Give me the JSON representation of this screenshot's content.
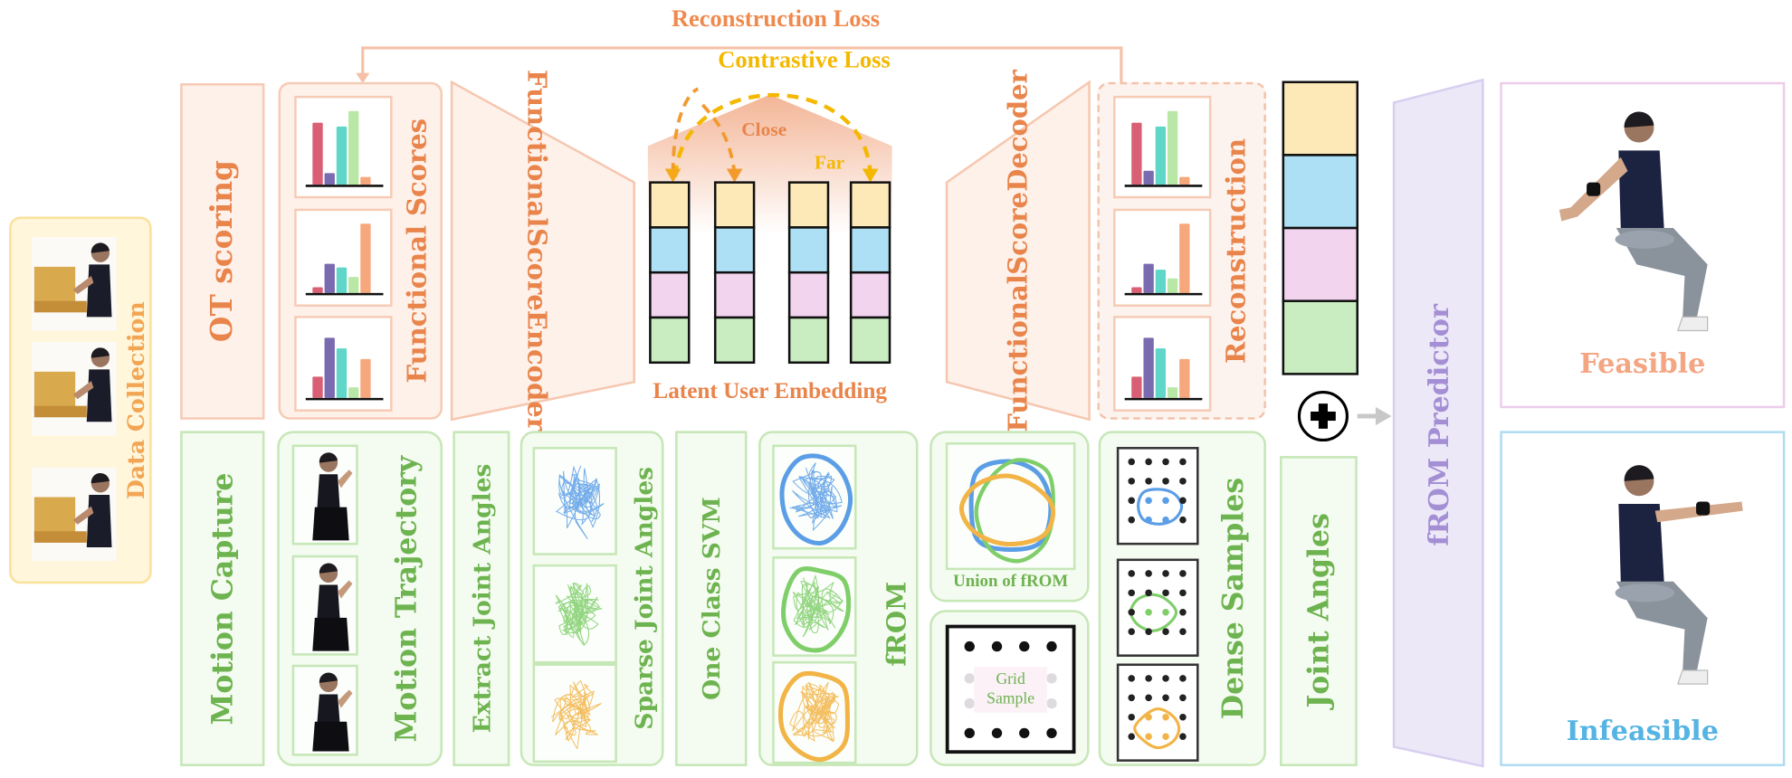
{
  "losses": {
    "reconstruction": "Reconstruction Loss",
    "contrastive": "Contrastive Loss",
    "close": "Close",
    "far": "Far"
  },
  "data_collection": {
    "label": "Data Collection"
  },
  "top_row": {
    "ot_scoring": "OT scoring",
    "functional_scores": "Functional Scores",
    "encoder": {
      "line1": "Functional",
      "line2": "Score",
      "line3": "Encoder"
    },
    "latent_embedding": "Latent User Embedding",
    "decoder": {
      "line1": "Functional",
      "line2": "Score",
      "line3": "Decoder"
    },
    "reconstruction": "Reconstruction"
  },
  "bottom_row": {
    "motion_capture": "Motion Capture",
    "motion_trajectory": "Motion Trajectory",
    "extract_joint_angles": "Extract Joint Angles",
    "sparse_joint_angles": "Sparse Joint Angles",
    "one_class_svm": "One Class SVM",
    "from": "fROM",
    "union_of_from": "Union of fROM",
    "grid_sample": {
      "line1": "Grid",
      "line2": "Sample"
    },
    "dense_samples": "Dense Samples",
    "joint_angles": "Joint Angles"
  },
  "predictor": {
    "label": "fROM Predictor"
  },
  "outputs": {
    "feasible": "Feasible",
    "infeasible": "Infeasible"
  },
  "colors": {
    "bars": [
      "#d95f74",
      "#7a6bb0",
      "#5fd6c8",
      "#b9e8a6",
      "#f6a77c"
    ],
    "embedding": [
      "#fde9b8",
      "#aee0f5",
      "#f2d4ef",
      "#c9ecc0"
    ],
    "sets": [
      "#5b9ee6",
      "#7fce6a",
      "#f2b446"
    ],
    "feasible": "#f4a582",
    "infeasible": "#55b4e3"
  },
  "functional_scores_bars": [
    [
      0.8,
      0.15,
      0.75,
      0.95,
      0.1
    ],
    [
      0.08,
      0.4,
      0.35,
      0.22,
      0.95
    ],
    [
      0.3,
      0.85,
      0.7,
      0.15,
      0.55
    ]
  ],
  "reconstruction_bars": [
    [
      0.8,
      0.18,
      0.75,
      0.95,
      0.1
    ],
    [
      0.08,
      0.4,
      0.32,
      0.2,
      0.95
    ],
    [
      0.3,
      0.85,
      0.7,
      0.15,
      0.55
    ]
  ]
}
